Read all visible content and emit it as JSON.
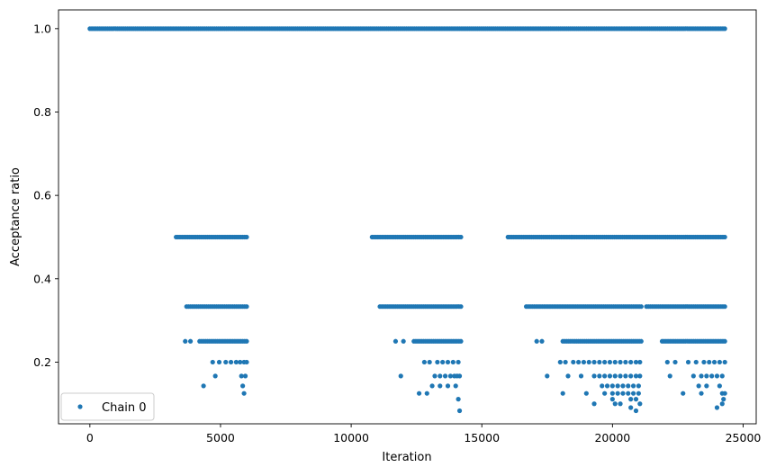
{
  "chart_data": {
    "type": "scatter",
    "xlabel": "Iteration",
    "ylabel": "Acceptance ratio",
    "xlim": [
      -1200,
      25500
    ],
    "ylim": [
      0.052,
      1.045
    ],
    "xticks": [
      0,
      5000,
      10000,
      15000,
      20000,
      25000
    ],
    "xtick_labels": [
      "0",
      "5000",
      "10000",
      "15000",
      "20000",
      "25000"
    ],
    "yticks": [
      0.2,
      0.4,
      0.6,
      0.8,
      1.0
    ],
    "ytick_labels": [
      "0.2",
      "0.4",
      "0.6",
      "0.8",
      "1.0"
    ],
    "grid": false,
    "legend_position": "lower left",
    "series": [
      {
        "name": "Chain 0",
        "color": "#1f77b4",
        "marker": "circle",
        "bands": [
          {
            "y": 1.0,
            "x_start": 0,
            "x_end": 24300
          },
          {
            "y": 0.5,
            "x_start": 3300,
            "x_end": 6000
          },
          {
            "y": 0.5,
            "x_start": 10800,
            "x_end": 14200
          },
          {
            "y": 0.5,
            "x_start": 16000,
            "x_end": 24300
          },
          {
            "y": 0.3333,
            "x_start": 3700,
            "x_end": 6000
          },
          {
            "y": 0.3333,
            "x_start": 11100,
            "x_end": 14200
          },
          {
            "y": 0.3333,
            "x_start": 16700,
            "x_end": 21100
          },
          {
            "y": 0.3333,
            "x_start": 21300,
            "x_end": 24300
          },
          {
            "y": 0.25,
            "x_start": 4200,
            "x_end": 6000
          },
          {
            "y": 0.25,
            "x_start": 12400,
            "x_end": 14200
          },
          {
            "y": 0.25,
            "x_start": 18100,
            "x_end": 21100
          },
          {
            "y": 0.25,
            "x_start": 21900,
            "x_end": 24300
          }
        ],
        "points": [
          [
            3650,
            0.25
          ],
          [
            3850,
            0.25
          ],
          [
            4700,
            0.2
          ],
          [
            4950,
            0.2
          ],
          [
            5200,
            0.2
          ],
          [
            5400,
            0.2
          ],
          [
            5600,
            0.2
          ],
          [
            5750,
            0.2
          ],
          [
            5900,
            0.2
          ],
          [
            6000,
            0.2
          ],
          [
            4350,
            0.1429
          ],
          [
            4800,
            0.1667
          ],
          [
            5800,
            0.1667
          ],
          [
            5950,
            0.1667
          ],
          [
            5850,
            0.1429
          ],
          [
            5900,
            0.125
          ],
          [
            11700,
            0.25
          ],
          [
            12000,
            0.25
          ],
          [
            12800,
            0.2
          ],
          [
            13000,
            0.2
          ],
          [
            13300,
            0.2
          ],
          [
            13500,
            0.2
          ],
          [
            13700,
            0.2
          ],
          [
            13900,
            0.2
          ],
          [
            14100,
            0.2
          ],
          [
            11900,
            0.1667
          ],
          [
            13200,
            0.1667
          ],
          [
            13400,
            0.1667
          ],
          [
            13600,
            0.1667
          ],
          [
            13800,
            0.1667
          ],
          [
            13950,
            0.1667
          ],
          [
            14050,
            0.1667
          ],
          [
            14150,
            0.1667
          ],
          [
            12600,
            0.125
          ],
          [
            12900,
            0.125
          ],
          [
            13100,
            0.1429
          ],
          [
            13400,
            0.1429
          ],
          [
            13700,
            0.1429
          ],
          [
            14000,
            0.1429
          ],
          [
            14100,
            0.1111
          ],
          [
            14150,
            0.0833
          ],
          [
            17100,
            0.25
          ],
          [
            17300,
            0.25
          ],
          [
            17500,
            0.1667
          ],
          [
            18000,
            0.2
          ],
          [
            18200,
            0.2
          ],
          [
            18500,
            0.2
          ],
          [
            18700,
            0.2
          ],
          [
            18900,
            0.2
          ],
          [
            19100,
            0.2
          ],
          [
            19300,
            0.2
          ],
          [
            19500,
            0.2
          ],
          [
            19700,
            0.2
          ],
          [
            19900,
            0.2
          ],
          [
            20100,
            0.2
          ],
          [
            20300,
            0.2
          ],
          [
            20500,
            0.2
          ],
          [
            20700,
            0.2
          ],
          [
            20900,
            0.2
          ],
          [
            21050,
            0.2
          ],
          [
            18300,
            0.1667
          ],
          [
            18800,
            0.1667
          ],
          [
            19300,
            0.1667
          ],
          [
            19500,
            0.1667
          ],
          [
            19700,
            0.1667
          ],
          [
            19900,
            0.1667
          ],
          [
            20100,
            0.1667
          ],
          [
            20300,
            0.1667
          ],
          [
            20500,
            0.1667
          ],
          [
            20700,
            0.1667
          ],
          [
            20900,
            0.1667
          ],
          [
            21050,
            0.1667
          ],
          [
            18100,
            0.125
          ],
          [
            19000,
            0.125
          ],
          [
            19600,
            0.1429
          ],
          [
            19800,
            0.1429
          ],
          [
            20000,
            0.1429
          ],
          [
            20200,
            0.1429
          ],
          [
            20400,
            0.1429
          ],
          [
            20600,
            0.1429
          ],
          [
            20800,
            0.1429
          ],
          [
            21000,
            0.1429
          ],
          [
            19300,
            0.1
          ],
          [
            19700,
            0.125
          ],
          [
            20000,
            0.125
          ],
          [
            20200,
            0.125
          ],
          [
            20400,
            0.125
          ],
          [
            20600,
            0.125
          ],
          [
            20800,
            0.125
          ],
          [
            21000,
            0.125
          ],
          [
            20000,
            0.1111
          ],
          [
            20100,
            0.1
          ],
          [
            20300,
            0.1
          ],
          [
            20700,
            0.1111
          ],
          [
            20900,
            0.1111
          ],
          [
            20700,
            0.0909
          ],
          [
            20900,
            0.0833
          ],
          [
            21050,
            0.1
          ],
          [
            22100,
            0.2
          ],
          [
            22400,
            0.2
          ],
          [
            22900,
            0.2
          ],
          [
            23200,
            0.2
          ],
          [
            23500,
            0.2
          ],
          [
            23700,
            0.2
          ],
          [
            23900,
            0.2
          ],
          [
            24100,
            0.2
          ],
          [
            24300,
            0.2
          ],
          [
            22200,
            0.1667
          ],
          [
            23100,
            0.1667
          ],
          [
            23400,
            0.1667
          ],
          [
            23600,
            0.1667
          ],
          [
            23800,
            0.1667
          ],
          [
            24000,
            0.1667
          ],
          [
            24200,
            0.1667
          ],
          [
            22700,
            0.125
          ],
          [
            23300,
            0.1429
          ],
          [
            23600,
            0.1429
          ],
          [
            24100,
            0.1429
          ],
          [
            23400,
            0.125
          ],
          [
            24200,
            0.125
          ],
          [
            24300,
            0.125
          ],
          [
            24000,
            0.0909
          ],
          [
            24200,
            0.1
          ],
          [
            24250,
            0.1111
          ]
        ]
      }
    ]
  }
}
